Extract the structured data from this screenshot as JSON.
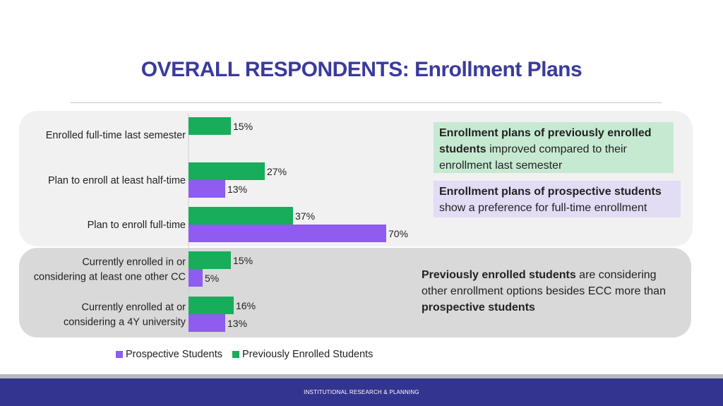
{
  "title": "OVERALL RESPONDENTS: Enrollment Plans",
  "footer": "INSTITUTIONAL RESEARCH & PLANNING",
  "notes": {
    "green_bold": "Enrollment plans of previously enrolled students",
    "green_rest": " improved compared to their enrollment last semester",
    "purple_bold": "Enrollment plans of prospective students",
    "purple_rest": " show a preference for full-time enrollment",
    "plain_bold1": "Previously enrolled students",
    "plain_mid": " are considering other enrollment options besides ECC more than ",
    "plain_bold2": "prospective students"
  },
  "colors": {
    "prospective": "#8f5cf0",
    "previous": "#17ad5a"
  },
  "chart_data": {
    "type": "bar",
    "orientation": "horizontal",
    "categories": [
      [
        "Enrolled full-time last semester"
      ],
      [
        "Plan to enroll at least half-time"
      ],
      [
        "Plan to enroll full-time"
      ],
      [
        "Currently enrolled in or",
        "considering at least one other CC"
      ],
      [
        "Currently enrolled at or",
        "considering a 4Y university"
      ]
    ],
    "series": [
      {
        "name": "Previously Enrolled Students",
        "values": [
          15,
          27,
          37,
          15,
          16
        ],
        "labels": [
          "15%",
          "27%",
          "37%",
          "15%",
          "16%"
        ]
      },
      {
        "name": "Prospective Students",
        "values": [
          null,
          13,
          70,
          5,
          13
        ],
        "labels": [
          "",
          "13%",
          "70%",
          "5%",
          "13%"
        ]
      }
    ],
    "legend": [
      "Prospective Students",
      "Previously Enrolled Students"
    ],
    "xlim": [
      0,
      70
    ],
    "grid": false
  }
}
